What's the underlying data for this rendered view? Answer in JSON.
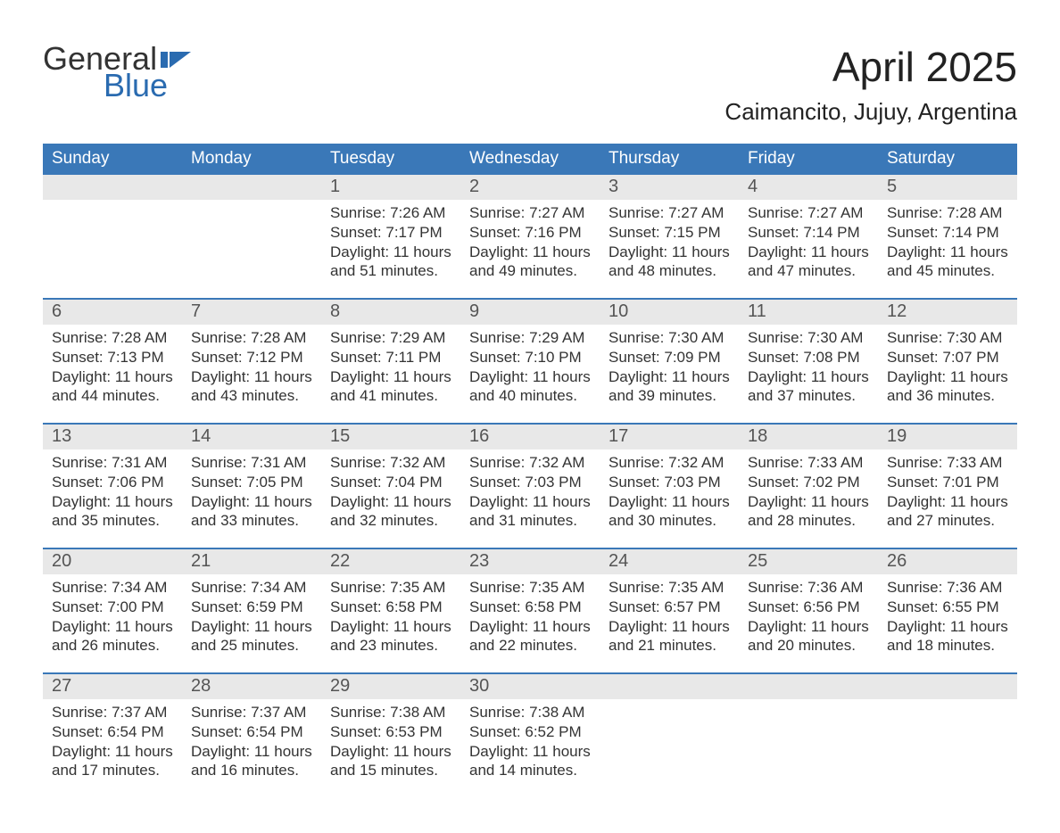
{
  "colors": {
    "header_bg": "#3a78b8",
    "header_text": "#ffffff",
    "daynum_bg": "#e8e8e8",
    "daynum_text": "#555555",
    "body_text": "#333333",
    "week_border": "#3a78b8",
    "logo_general": "#333333",
    "logo_blue": "#2a6bb0",
    "logo_flag": "#2a6bb0"
  },
  "logo": {
    "general": "General",
    "blue": "Blue"
  },
  "title": "April 2025",
  "location": "Caimancito, Jujuy, Argentina",
  "weekdays": [
    "Sunday",
    "Monday",
    "Tuesday",
    "Wednesday",
    "Thursday",
    "Friday",
    "Saturday"
  ],
  "weeks": [
    {
      "days": [
        {
          "num": "",
          "sunrise": "",
          "sunset": "",
          "daylight": ""
        },
        {
          "num": "",
          "sunrise": "",
          "sunset": "",
          "daylight": ""
        },
        {
          "num": "1",
          "sunrise": "Sunrise: 7:26 AM",
          "sunset": "Sunset: 7:17 PM",
          "daylight": "Daylight: 11 hours and 51 minutes."
        },
        {
          "num": "2",
          "sunrise": "Sunrise: 7:27 AM",
          "sunset": "Sunset: 7:16 PM",
          "daylight": "Daylight: 11 hours and 49 minutes."
        },
        {
          "num": "3",
          "sunrise": "Sunrise: 7:27 AM",
          "sunset": "Sunset: 7:15 PM",
          "daylight": "Daylight: 11 hours and 48 minutes."
        },
        {
          "num": "4",
          "sunrise": "Sunrise: 7:27 AM",
          "sunset": "Sunset: 7:14 PM",
          "daylight": "Daylight: 11 hours and 47 minutes."
        },
        {
          "num": "5",
          "sunrise": "Sunrise: 7:28 AM",
          "sunset": "Sunset: 7:14 PM",
          "daylight": "Daylight: 11 hours and 45 minutes."
        }
      ]
    },
    {
      "days": [
        {
          "num": "6",
          "sunrise": "Sunrise: 7:28 AM",
          "sunset": "Sunset: 7:13 PM",
          "daylight": "Daylight: 11 hours and 44 minutes."
        },
        {
          "num": "7",
          "sunrise": "Sunrise: 7:28 AM",
          "sunset": "Sunset: 7:12 PM",
          "daylight": "Daylight: 11 hours and 43 minutes."
        },
        {
          "num": "8",
          "sunrise": "Sunrise: 7:29 AM",
          "sunset": "Sunset: 7:11 PM",
          "daylight": "Daylight: 11 hours and 41 minutes."
        },
        {
          "num": "9",
          "sunrise": "Sunrise: 7:29 AM",
          "sunset": "Sunset: 7:10 PM",
          "daylight": "Daylight: 11 hours and 40 minutes."
        },
        {
          "num": "10",
          "sunrise": "Sunrise: 7:30 AM",
          "sunset": "Sunset: 7:09 PM",
          "daylight": "Daylight: 11 hours and 39 minutes."
        },
        {
          "num": "11",
          "sunrise": "Sunrise: 7:30 AM",
          "sunset": "Sunset: 7:08 PM",
          "daylight": "Daylight: 11 hours and 37 minutes."
        },
        {
          "num": "12",
          "sunrise": "Sunrise: 7:30 AM",
          "sunset": "Sunset: 7:07 PM",
          "daylight": "Daylight: 11 hours and 36 minutes."
        }
      ]
    },
    {
      "days": [
        {
          "num": "13",
          "sunrise": "Sunrise: 7:31 AM",
          "sunset": "Sunset: 7:06 PM",
          "daylight": "Daylight: 11 hours and 35 minutes."
        },
        {
          "num": "14",
          "sunrise": "Sunrise: 7:31 AM",
          "sunset": "Sunset: 7:05 PM",
          "daylight": "Daylight: 11 hours and 33 minutes."
        },
        {
          "num": "15",
          "sunrise": "Sunrise: 7:32 AM",
          "sunset": "Sunset: 7:04 PM",
          "daylight": "Daylight: 11 hours and 32 minutes."
        },
        {
          "num": "16",
          "sunrise": "Sunrise: 7:32 AM",
          "sunset": "Sunset: 7:03 PM",
          "daylight": "Daylight: 11 hours and 31 minutes."
        },
        {
          "num": "17",
          "sunrise": "Sunrise: 7:32 AM",
          "sunset": "Sunset: 7:03 PM",
          "daylight": "Daylight: 11 hours and 30 minutes."
        },
        {
          "num": "18",
          "sunrise": "Sunrise: 7:33 AM",
          "sunset": "Sunset: 7:02 PM",
          "daylight": "Daylight: 11 hours and 28 minutes."
        },
        {
          "num": "19",
          "sunrise": "Sunrise: 7:33 AM",
          "sunset": "Sunset: 7:01 PM",
          "daylight": "Daylight: 11 hours and 27 minutes."
        }
      ]
    },
    {
      "days": [
        {
          "num": "20",
          "sunrise": "Sunrise: 7:34 AM",
          "sunset": "Sunset: 7:00 PM",
          "daylight": "Daylight: 11 hours and 26 minutes."
        },
        {
          "num": "21",
          "sunrise": "Sunrise: 7:34 AM",
          "sunset": "Sunset: 6:59 PM",
          "daylight": "Daylight: 11 hours and 25 minutes."
        },
        {
          "num": "22",
          "sunrise": "Sunrise: 7:35 AM",
          "sunset": "Sunset: 6:58 PM",
          "daylight": "Daylight: 11 hours and 23 minutes."
        },
        {
          "num": "23",
          "sunrise": "Sunrise: 7:35 AM",
          "sunset": "Sunset: 6:58 PM",
          "daylight": "Daylight: 11 hours and 22 minutes."
        },
        {
          "num": "24",
          "sunrise": "Sunrise: 7:35 AM",
          "sunset": "Sunset: 6:57 PM",
          "daylight": "Daylight: 11 hours and 21 minutes."
        },
        {
          "num": "25",
          "sunrise": "Sunrise: 7:36 AM",
          "sunset": "Sunset: 6:56 PM",
          "daylight": "Daylight: 11 hours and 20 minutes."
        },
        {
          "num": "26",
          "sunrise": "Sunrise: 7:36 AM",
          "sunset": "Sunset: 6:55 PM",
          "daylight": "Daylight: 11 hours and 18 minutes."
        }
      ]
    },
    {
      "days": [
        {
          "num": "27",
          "sunrise": "Sunrise: 7:37 AM",
          "sunset": "Sunset: 6:54 PM",
          "daylight": "Daylight: 11 hours and 17 minutes."
        },
        {
          "num": "28",
          "sunrise": "Sunrise: 7:37 AM",
          "sunset": "Sunset: 6:54 PM",
          "daylight": "Daylight: 11 hours and 16 minutes."
        },
        {
          "num": "29",
          "sunrise": "Sunrise: 7:38 AM",
          "sunset": "Sunset: 6:53 PM",
          "daylight": "Daylight: 11 hours and 15 minutes."
        },
        {
          "num": "30",
          "sunrise": "Sunrise: 7:38 AM",
          "sunset": "Sunset: 6:52 PM",
          "daylight": "Daylight: 11 hours and 14 minutes."
        },
        {
          "num": "",
          "sunrise": "",
          "sunset": "",
          "daylight": ""
        },
        {
          "num": "",
          "sunrise": "",
          "sunset": "",
          "daylight": ""
        },
        {
          "num": "",
          "sunrise": "",
          "sunset": "",
          "daylight": ""
        }
      ]
    }
  ]
}
